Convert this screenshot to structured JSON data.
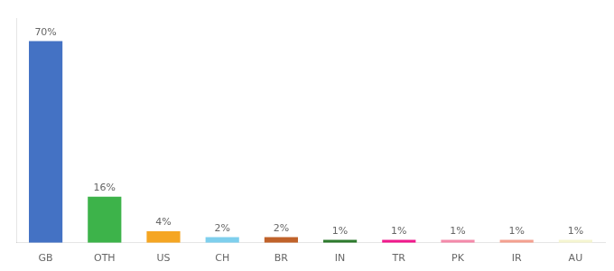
{
  "chart_data": {
    "type": "bar",
    "categories": [
      "GB",
      "OTH",
      "US",
      "CH",
      "BR",
      "IN",
      "TR",
      "PK",
      "IR",
      "AU"
    ],
    "values": [
      70,
      16,
      4,
      2,
      2,
      1,
      1,
      1,
      1,
      1
    ],
    "value_labels": [
      "70%",
      "16%",
      "4%",
      "2%",
      "2%",
      "1%",
      "1%",
      "1%",
      "1%",
      "1%"
    ],
    "colors": [
      "#4472c4",
      "#3db34a",
      "#f5a623",
      "#7ecfed",
      "#c0622a",
      "#2d7a2d",
      "#f0198c",
      "#f48aaa",
      "#f4a090",
      "#f5f5d0"
    ],
    "ylim": [
      0,
      78
    ],
    "data_labels": true,
    "tick_labels": "x",
    "grid": false
  }
}
